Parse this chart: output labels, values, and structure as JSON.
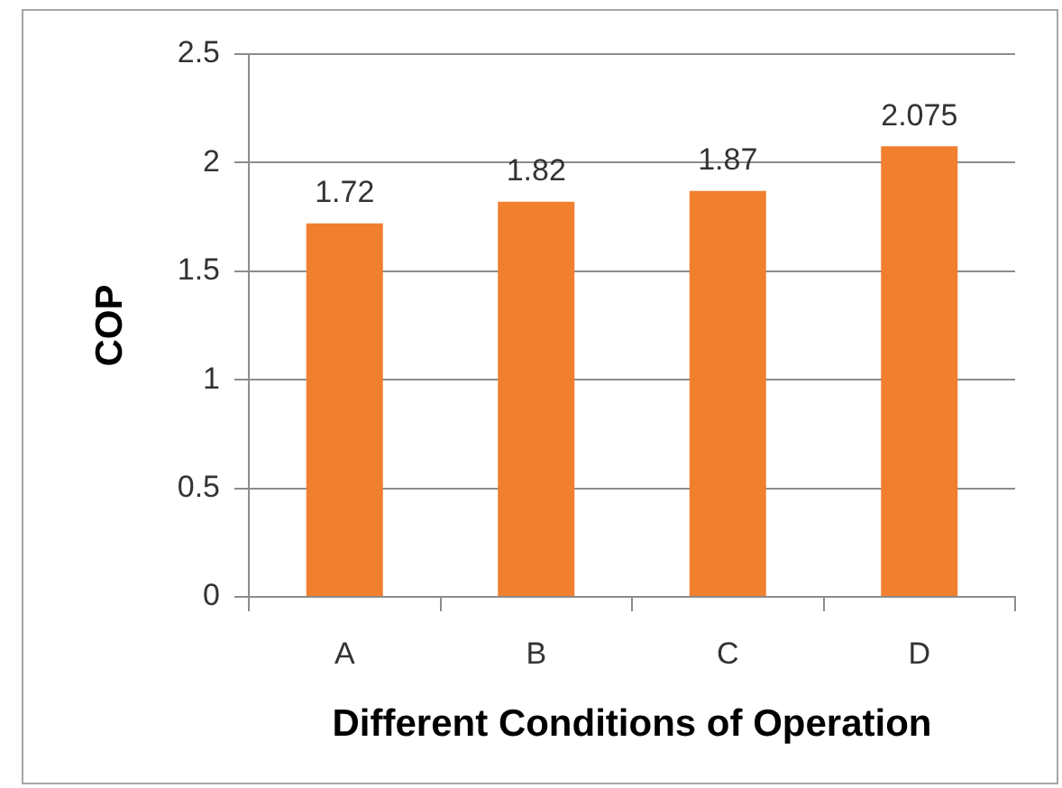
{
  "chart_data": {
    "type": "bar",
    "xlabel": "Different Conditions of Operation",
    "ylabel": "COP",
    "categories": [
      "A",
      "B",
      "C",
      "D"
    ],
    "values": [
      1.72,
      1.82,
      1.87,
      2.075
    ],
    "color": "#f07f2e",
    "ylim": [
      0,
      2.5
    ],
    "yticks": [
      0,
      0.5,
      1,
      1.5,
      2,
      2.5
    ],
    "grid": "y",
    "data_labels": true,
    "legend": false
  }
}
